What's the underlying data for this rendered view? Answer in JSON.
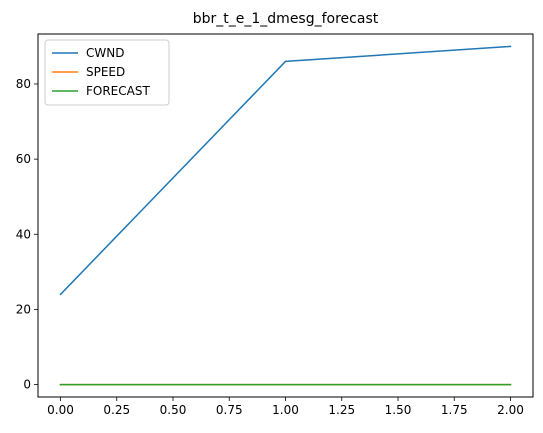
{
  "chart_data": {
    "type": "line",
    "title": "bbr_t_e_1_dmesg_forecast",
    "xlabel": "",
    "ylabel": "",
    "xlim": [
      -0.1,
      2.1
    ],
    "ylim": [
      -3.3,
      93.3
    ],
    "x_ticks": [
      0.0,
      0.25,
      0.5,
      0.75,
      1.0,
      1.25,
      1.5,
      1.75,
      2.0
    ],
    "x_tick_labels": [
      "0.00",
      "0.25",
      "0.50",
      "0.75",
      "1.00",
      "1.25",
      "1.50",
      "1.75",
      "2.00"
    ],
    "y_ticks": [
      0,
      20,
      40,
      60,
      80
    ],
    "y_tick_labels": [
      "0",
      "20",
      "40",
      "60",
      "80"
    ],
    "grid": false,
    "legend_position": "upper-left",
    "x": [
      0,
      1,
      2
    ],
    "series": [
      {
        "name": "CWND",
        "color": "#1f77b4",
        "values": [
          24,
          86,
          90
        ]
      },
      {
        "name": "SPEED",
        "color": "#ff7f0e",
        "values": [
          0,
          0,
          0
        ]
      },
      {
        "name": "FORECAST",
        "color": "#2ca02c",
        "values": [
          0,
          0,
          0
        ]
      }
    ]
  }
}
